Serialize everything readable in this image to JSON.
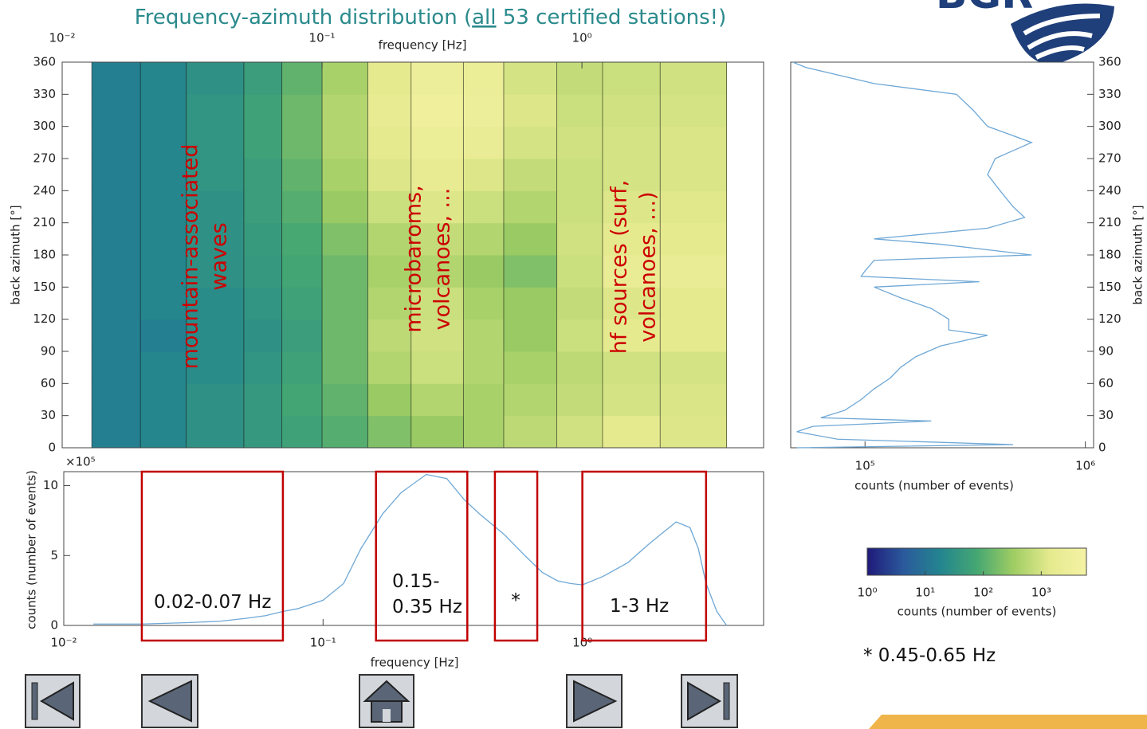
{
  "header": {
    "title_parts": [
      "Frequency-azimuth distribution (",
      "all",
      " 53 certified stations!)"
    ],
    "logo": "BGR"
  },
  "footnote": "* 0.45-0.65 Hz",
  "chart_data": [
    {
      "type": "heatmap",
      "xlabel": "frequency [Hz]",
      "ylabel": "back azimuth [°]",
      "xscale": "log",
      "xlim": [
        0.01,
        5
      ],
      "xticks": [
        {
          "value": 0.01,
          "label": "10⁻²"
        },
        {
          "value": 0.1,
          "label": "10⁻¹"
        },
        {
          "value": 1,
          "label": "10⁰"
        }
      ],
      "ylim": [
        0,
        360
      ],
      "yticks": [
        0,
        30,
        60,
        90,
        120,
        150,
        180,
        210,
        240,
        270,
        300,
        330,
        360
      ],
      "x_edges": [
        0.013,
        0.02,
        0.03,
        0.05,
        0.07,
        0.1,
        0.15,
        0.22,
        0.35,
        0.5,
        0.8,
        1.2,
        2,
        3.6
      ],
      "y_edges": [
        0,
        30,
        60,
        90,
        120,
        150,
        180,
        210,
        240,
        270,
        300,
        330,
        360
      ],
      "values": [
        [
          15,
          20,
          30,
          40,
          60,
          100,
          200,
          300,
          400,
          600,
          900,
          1500,
          1200
        ],
        [
          15,
          20,
          30,
          40,
          70,
          120,
          300,
          500,
          400,
          500,
          700,
          1000,
          1100
        ],
        [
          15,
          20,
          25,
          35,
          60,
          150,
          500,
          800,
          500,
          400,
          600,
          900,
          1000
        ],
        [
          15,
          15,
          25,
          30,
          50,
          150,
          600,
          900,
          500,
          300,
          800,
          1500,
          1500
        ],
        [
          15,
          20,
          25,
          35,
          60,
          150,
          500,
          800,
          400,
          300,
          700,
          1200,
          1400
        ],
        [
          15,
          20,
          30,
          40,
          70,
          150,
          400,
          500,
          300,
          200,
          800,
          2000,
          2000
        ],
        [
          15,
          20,
          30,
          45,
          80,
          200,
          500,
          700,
          500,
          300,
          900,
          1500,
          1500
        ],
        [
          15,
          20,
          30,
          50,
          100,
          300,
          800,
          1200,
          800,
          500,
          800,
          1200,
          1300
        ],
        [
          15,
          20,
          35,
          50,
          120,
          400,
          1200,
          1800,
          1200,
          700,
          800,
          1000,
          1100
        ],
        [
          15,
          20,
          35,
          60,
          150,
          500,
          1500,
          2500,
          2000,
          1000,
          900,
          1000,
          1100
        ],
        [
          15,
          20,
          35,
          60,
          150,
          500,
          1800,
          3500,
          3000,
          1200,
          800,
          900,
          1000
        ],
        [
          15,
          20,
          30,
          50,
          120,
          400,
          1500,
          3000,
          2500,
          1000,
          700,
          800,
          900
        ]
      ],
      "colormap": [
        "#1f1a7a",
        "#2b5a9c",
        "#23858f",
        "#45a772",
        "#9fcd63",
        "#e5ea8e",
        "#f5f2a5"
      ],
      "colorbar": {
        "label": "counts (number of events)",
        "lim": [
          1,
          6000
        ],
        "scale": "log",
        "ticks": [
          {
            "value": 1,
            "label": "10⁰"
          },
          {
            "value": 10,
            "label": "10¹"
          },
          {
            "value": 100,
            "label": "10²"
          },
          {
            "value": 1000,
            "label": "10³"
          }
        ]
      },
      "annotation_color": "#cc0000",
      "annotations": [
        [
          "mountain-associated",
          "waves"
        ],
        [
          "microbaroms,",
          "volcanoes, ..."
        ],
        [
          "hf sources (surf,",
          "volcanoes, ...)"
        ]
      ]
    },
    {
      "type": "line",
      "orientation": "horizontal",
      "xlabel": "counts (number of events)",
      "ylabel": "back azimuth [°]",
      "xscale": "log",
      "xlim": [
        46000,
        1090000
      ],
      "xticks": [
        {
          "value": 100000,
          "label": "10⁵"
        },
        {
          "value": 1000000,
          "label": "10⁶"
        }
      ],
      "ylim": [
        0,
        360
      ],
      "yticks": [
        0,
        30,
        60,
        90,
        120,
        150,
        180,
        210,
        240,
        270,
        300,
        330,
        360
      ],
      "color": "#6fa8d6",
      "y": [
        0,
        3,
        8,
        15,
        20,
        25,
        28,
        35,
        45,
        55,
        65,
        75,
        85,
        95,
        105,
        110,
        120,
        130,
        140,
        150,
        155,
        160,
        165,
        175,
        180,
        190,
        195,
        205,
        215,
        225,
        240,
        255,
        270,
        285,
        300,
        315,
        330,
        340,
        355,
        360
      ],
      "values": [
        49000,
        470000,
        75000,
        49000,
        58000,
        200000,
        63000,
        81000,
        96000,
        110000,
        130000,
        145000,
        170000,
        220000,
        360000,
        240000,
        240000,
        200000,
        145000,
        110000,
        330000,
        96000,
        100000,
        110000,
        570000,
        220000,
        110000,
        360000,
        530000,
        470000,
        410000,
        360000,
        390000,
        570000,
        360000,
        310000,
        260000,
        110000,
        54000,
        47000
      ]
    },
    {
      "type": "line",
      "xlabel": "frequency [Hz]",
      "ylabel": "counts (number of events)",
      "y_multiplier": "×10⁵",
      "xscale": "log",
      "xlim": [
        0.01,
        5
      ],
      "xticks": [
        {
          "value": 0.01,
          "label": "10⁻²"
        },
        {
          "value": 0.1,
          "label": "10⁻¹"
        },
        {
          "value": 1,
          "label": "10⁰"
        }
      ],
      "ylim": [
        0,
        11
      ],
      "yticks": [
        0,
        5,
        10
      ],
      "color": "#6fa8d6",
      "x": [
        0.013,
        0.02,
        0.03,
        0.04,
        0.05,
        0.06,
        0.07,
        0.08,
        0.1,
        0.12,
        0.14,
        0.17,
        0.2,
        0.25,
        0.3,
        0.35,
        0.4,
        0.5,
        0.6,
        0.7,
        0.8,
        0.9,
        1.0,
        1.2,
        1.5,
        1.8,
        2.0,
        2.3,
        2.6,
        2.8,
        3.0,
        3.3,
        3.6
      ],
      "values": [
        0.1,
        0.1,
        0.2,
        0.3,
        0.5,
        0.7,
        1.0,
        1.2,
        1.8,
        3.0,
        5.5,
        8.0,
        9.5,
        10.8,
        10.5,
        9.0,
        8.0,
        6.5,
        5.0,
        3.8,
        3.2,
        3.0,
        2.9,
        3.5,
        4.5,
        5.8,
        6.5,
        7.4,
        7.0,
        5.5,
        3.0,
        1.0,
        0
      ],
      "band_color": "#c00000",
      "bands": [
        {
          "label": "0.02-0.07 Hz",
          "range": [
            0.02,
            0.07
          ]
        },
        {
          "label": "0.15-0.35 Hz",
          "range": [
            0.16,
            0.36
          ]
        },
        {
          "label": "*",
          "range": [
            0.46,
            0.67
          ]
        },
        {
          "label": "1-3 Hz",
          "range": [
            1.0,
            3.0
          ]
        }
      ]
    }
  ]
}
